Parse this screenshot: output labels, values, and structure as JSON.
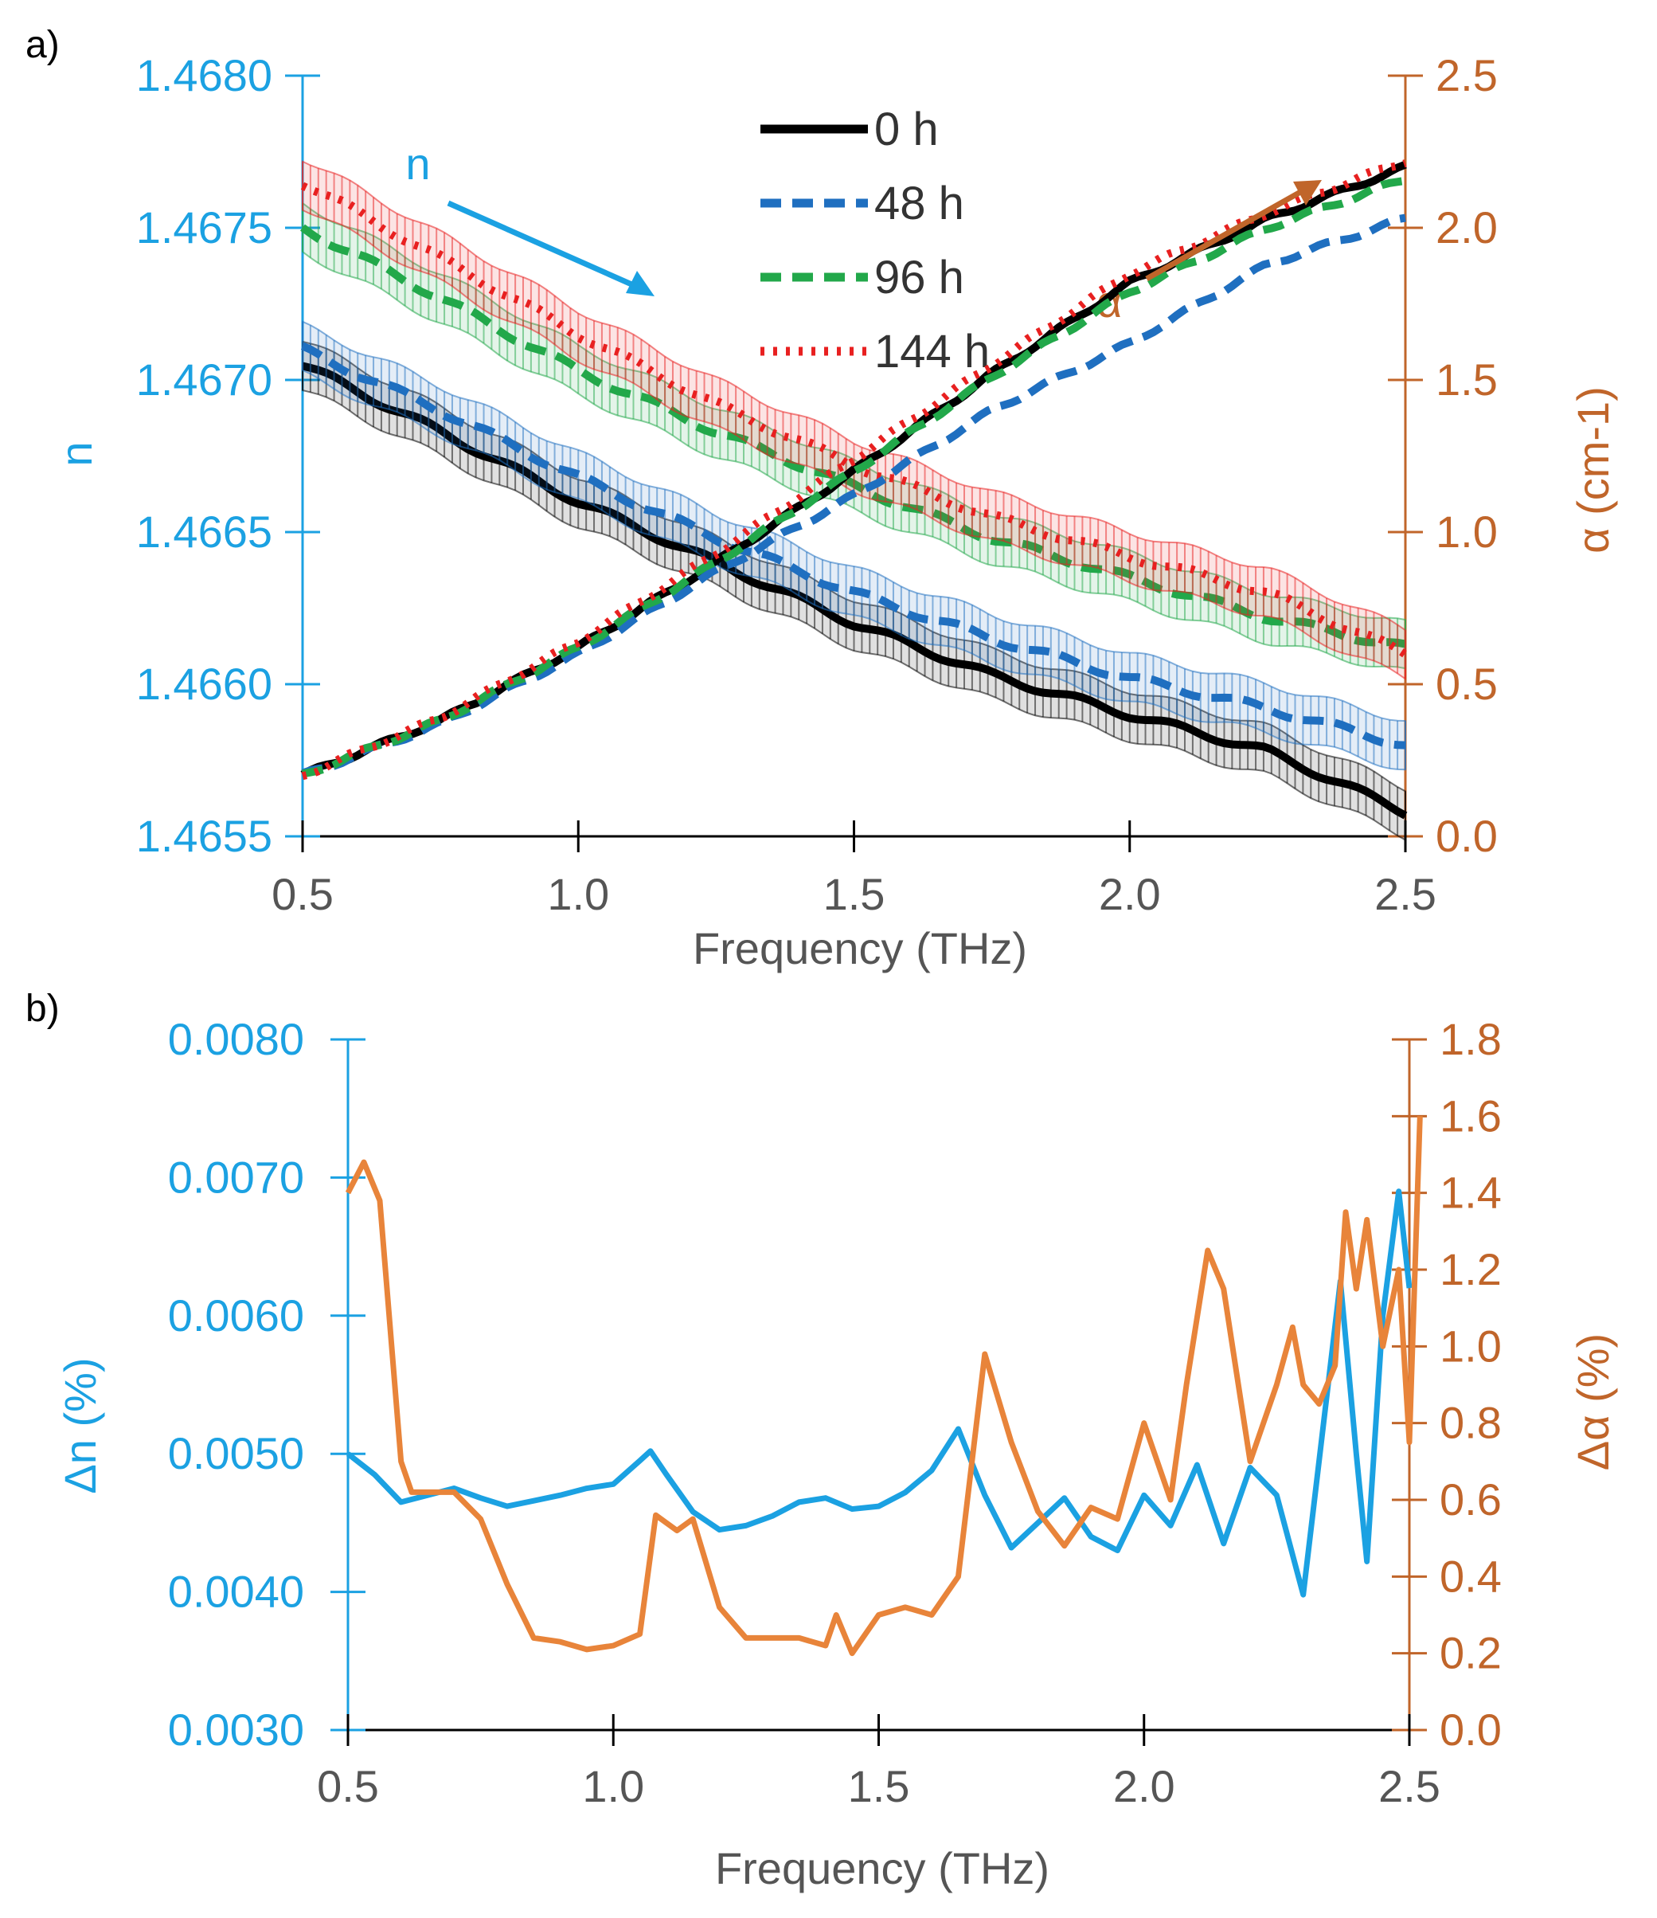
{
  "colors": {
    "n_axis": "#1BA1E2",
    "alpha_axis": "#C0652A",
    "delta_alpha_line": "#E8843A",
    "s0": "#000000",
    "s48": "#1F6FC0",
    "s96": "#22A84A",
    "s144": "#E82020"
  },
  "chart_data": [
    {
      "panel_label": "a)",
      "type": "line",
      "xlabel": "Frequency (THz)",
      "xlim": [
        0.5,
        2.5
      ],
      "xticks": [
        "0.5",
        "1.0",
        "1.5",
        "2.0",
        "2.5"
      ],
      "ylabel_left": "n",
      "ylim_left": [
        1.4655,
        1.468
      ],
      "yticks_left": [
        "1.4655",
        "1.4660",
        "1.4665",
        "1.4670",
        "1.4675",
        "1.4680"
      ],
      "ylabel_right": "α (cm-1)",
      "ylim_right": [
        0,
        2.5
      ],
      "yticks_right": [
        "0.0",
        "0.5",
        "1.0",
        "1.5",
        "2.0",
        "2.5"
      ],
      "legend": [
        "0 h",
        "48 h",
        "96 h",
        "144 h"
      ],
      "annotations": {
        "n_arrow_label": "n",
        "alpha_arrow_label": "α"
      },
      "x": [
        0.5,
        0.75,
        1.0,
        1.25,
        1.5,
        1.75,
        2.0,
        2.25,
        2.5
      ],
      "series_n": [
        {
          "name": "0 h",
          "values": [
            1.46705,
            1.46683,
            1.4666,
            1.4664,
            1.4662,
            1.46603,
            1.4659,
            1.46578,
            1.46558
          ],
          "error": 8e-05
        },
        {
          "name": "48 h",
          "values": [
            1.4671,
            1.4669,
            1.46668,
            1.46648,
            1.4663,
            1.46615,
            1.46602,
            1.46592,
            1.4658
          ],
          "error": 8e-05
        },
        {
          "name": "96 h",
          "values": [
            1.4675,
            1.46727,
            1.46703,
            1.46683,
            1.46665,
            1.46648,
            1.46635,
            1.46622,
            1.46612
          ],
          "error": 8e-05
        },
        {
          "name": "144 h",
          "values": [
            1.46765,
            1.4674,
            1.46715,
            1.46692,
            1.46672,
            1.46655,
            1.46642,
            1.4663,
            1.4661
          ],
          "error": 8e-05
        }
      ],
      "series_alpha": [
        {
          "name": "0 h",
          "values": [
            0.2,
            0.38,
            0.62,
            0.9,
            1.2,
            1.52,
            1.82,
            2.03,
            2.2
          ]
        },
        {
          "name": "48 h",
          "values": [
            0.2,
            0.37,
            0.6,
            0.87,
            1.12,
            1.4,
            1.62,
            1.88,
            2.03
          ]
        },
        {
          "name": "96 h",
          "values": [
            0.2,
            0.38,
            0.62,
            0.9,
            1.2,
            1.51,
            1.79,
            2.0,
            2.16
          ]
        },
        {
          "name": "144 h",
          "values": [
            0.2,
            0.39,
            0.64,
            0.93,
            1.24,
            1.55,
            1.85,
            2.05,
            2.22
          ]
        }
      ]
    },
    {
      "panel_label": "b)",
      "type": "line",
      "xlabel": "Frequency (THz)",
      "xlim": [
        0.5,
        2.5
      ],
      "xticks": [
        "0.5",
        "1.0",
        "1.5",
        "2.0",
        "2.5"
      ],
      "ylabel_left": "Δn (%)",
      "ylim_left": [
        0.003,
        0.008
      ],
      "yticks_left": [
        "0.0030",
        "0.0040",
        "0.0050",
        "0.0060",
        "0.0070",
        "0.0080"
      ],
      "ylabel_right": "Δα (%)",
      "ylim_right": [
        0,
        1.8
      ],
      "yticks_right": [
        "0.0",
        "0.2",
        "0.4",
        "0.6",
        "0.8",
        "1.0",
        "1.2",
        "1.4",
        "1.6",
        "1.8"
      ],
      "series": [
        {
          "name": "Δn",
          "axis": "left",
          "x": [
            0.5,
            0.55,
            0.6,
            0.65,
            0.7,
            0.75,
            0.8,
            0.85,
            0.9,
            0.95,
            1.0,
            1.05,
            1.07,
            1.1,
            1.15,
            1.2,
            1.25,
            1.3,
            1.35,
            1.4,
            1.45,
            1.5,
            1.55,
            1.6,
            1.65,
            1.7,
            1.75,
            1.8,
            1.85,
            1.9,
            1.95,
            2.0,
            2.05,
            2.1,
            2.15,
            2.2,
            2.25,
            2.3,
            2.35,
            2.37,
            2.4,
            2.42,
            2.45,
            2.48,
            2.5
          ],
          "values": [
            0.005,
            0.00485,
            0.00465,
            0.0047,
            0.00475,
            0.00468,
            0.00462,
            0.00466,
            0.0047,
            0.00475,
            0.00478,
            0.00495,
            0.00502,
            0.00485,
            0.00458,
            0.00445,
            0.00448,
            0.00455,
            0.00465,
            0.00468,
            0.0046,
            0.00462,
            0.00472,
            0.00488,
            0.00518,
            0.0047,
            0.00432,
            0.0045,
            0.00468,
            0.0044,
            0.0043,
            0.0047,
            0.00448,
            0.00492,
            0.00435,
            0.0049,
            0.0047,
            0.00398,
            0.0056,
            0.00625,
            0.005,
            0.00422,
            0.006,
            0.0069,
            0.0062
          ]
        },
        {
          "name": "Δα",
          "axis": "right",
          "x": [
            0.5,
            0.53,
            0.56,
            0.6,
            0.62,
            0.65,
            0.7,
            0.75,
            0.8,
            0.85,
            0.9,
            0.95,
            1.0,
            1.05,
            1.08,
            1.12,
            1.15,
            1.2,
            1.25,
            1.3,
            1.35,
            1.4,
            1.42,
            1.45,
            1.5,
            1.55,
            1.6,
            1.65,
            1.7,
            1.75,
            1.8,
            1.85,
            1.9,
            1.95,
            2.0,
            2.05,
            2.08,
            2.12,
            2.15,
            2.2,
            2.25,
            2.28,
            2.3,
            2.33,
            2.36,
            2.38,
            2.4,
            2.42,
            2.45,
            2.48,
            2.5,
            2.52
          ],
          "values": [
            1.4,
            1.48,
            1.38,
            0.7,
            0.62,
            0.62,
            0.62,
            0.55,
            0.38,
            0.24,
            0.23,
            0.21,
            0.22,
            0.25,
            0.56,
            0.52,
            0.55,
            0.32,
            0.24,
            0.24,
            0.24,
            0.22,
            0.3,
            0.2,
            0.3,
            0.32,
            0.3,
            0.4,
            0.98,
            0.75,
            0.57,
            0.48,
            0.58,
            0.55,
            0.8,
            0.6,
            0.9,
            1.25,
            1.15,
            0.7,
            0.9,
            1.05,
            0.9,
            0.85,
            0.95,
            1.35,
            1.15,
            1.33,
            1.0,
            1.2,
            0.75,
            1.6
          ]
        }
      ]
    }
  ]
}
